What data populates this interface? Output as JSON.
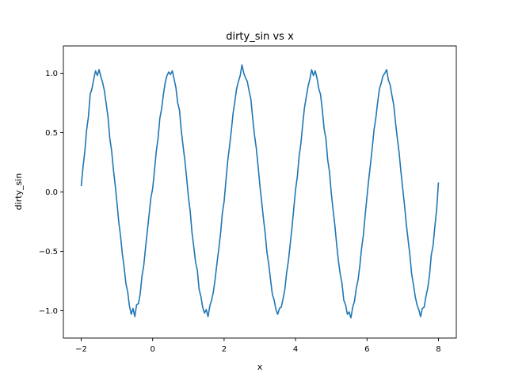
{
  "chart_data": {
    "type": "line",
    "title": "dirty_sin vs x",
    "xlabel": "x",
    "ylabel": "dirty_sin",
    "xlim": [
      -2.5,
      8.5
    ],
    "ylim": [
      -1.23,
      1.23
    ],
    "xticks": [
      -2,
      0,
      2,
      4,
      6,
      8
    ],
    "xtick_labels": [
      "−2",
      "0",
      "2",
      "4",
      "6",
      "8"
    ],
    "yticks": [
      -1.0,
      -0.5,
      0.0,
      0.5,
      1.0
    ],
    "ytick_labels": [
      "−1.0",
      "−0.5",
      "0.0",
      "0.5",
      "1.0"
    ],
    "grid": false,
    "series": [
      {
        "color": "#1f77b4",
        "x": [
          -2.0,
          -1.95,
          -1.9,
          -1.85,
          -1.8,
          -1.75,
          -1.7,
          -1.65,
          -1.6,
          -1.55,
          -1.5,
          -1.45,
          -1.4,
          -1.35,
          -1.3,
          -1.25,
          -1.2,
          -1.15,
          -1.1,
          -1.05,
          -1.0,
          -0.95,
          -0.9,
          -0.85,
          -0.8,
          -0.75,
          -0.7,
          -0.65,
          -0.6,
          -0.55,
          -0.5,
          -0.45,
          -0.4,
          -0.35,
          -0.3,
          -0.25,
          -0.2,
          -0.15,
          -0.1,
          -0.05,
          0.0,
          0.05,
          0.1,
          0.15,
          0.2,
          0.25,
          0.3,
          0.35,
          0.4,
          0.45,
          0.5,
          0.55,
          0.6,
          0.65,
          0.7,
          0.75,
          0.8,
          0.85,
          0.9,
          0.95,
          1.0,
          1.05,
          1.1,
          1.15,
          1.2,
          1.25,
          1.3,
          1.35,
          1.4,
          1.45,
          1.5,
          1.55,
          1.6,
          1.65,
          1.7,
          1.75,
          1.8,
          1.85,
          1.9,
          1.95,
          2.0,
          2.05,
          2.1,
          2.15,
          2.2,
          2.25,
          2.3,
          2.35,
          2.4,
          2.45,
          2.5,
          2.55,
          2.6,
          2.65,
          2.7,
          2.75,
          2.8,
          2.85,
          2.9,
          2.95,
          3.0,
          3.05,
          3.1,
          3.15,
          3.2,
          3.25,
          3.3,
          3.35,
          3.4,
          3.45,
          3.5,
          3.55,
          3.6,
          3.65,
          3.7,
          3.75,
          3.8,
          3.85,
          3.9,
          3.95,
          4.0,
          4.05,
          4.1,
          4.15,
          4.2,
          4.25,
          4.3,
          4.35,
          4.4,
          4.45,
          4.5,
          4.55,
          4.6,
          4.65,
          4.7,
          4.75,
          4.8,
          4.85,
          4.9,
          4.95,
          5.0,
          5.05,
          5.1,
          5.15,
          5.2,
          5.25,
          5.3,
          5.35,
          5.4,
          5.45,
          5.5,
          5.55,
          5.6,
          5.65,
          5.7,
          5.75,
          5.8,
          5.85,
          5.9,
          5.95,
          6.0,
          6.05,
          6.1,
          6.15,
          6.2,
          6.25,
          6.3,
          6.35,
          6.4,
          6.45,
          6.5,
          6.55,
          6.6,
          6.65,
          6.7,
          6.75,
          6.8,
          6.85,
          6.9,
          6.95,
          7.0,
          7.05,
          7.1,
          7.15,
          7.2,
          7.25,
          7.3,
          7.35,
          7.4,
          7.45,
          7.5,
          7.55,
          7.6,
          7.65,
          7.7,
          7.75,
          7.8,
          7.85,
          7.9,
          7.95,
          8.0
        ],
        "y": [
          0.05,
          0.21,
          0.34,
          0.52,
          0.63,
          0.82,
          0.87,
          0.95,
          1.02,
          0.98,
          1.03,
          0.97,
          0.92,
          0.85,
          0.74,
          0.63,
          0.45,
          0.35,
          0.19,
          0.06,
          -0.09,
          -0.25,
          -0.37,
          -0.52,
          -0.63,
          -0.77,
          -0.84,
          -0.96,
          -1.03,
          -0.98,
          -1.05,
          -0.95,
          -0.94,
          -0.86,
          -0.71,
          -0.62,
          -0.47,
          -0.33,
          -0.19,
          -0.05,
          0.03,
          0.18,
          0.34,
          0.45,
          0.62,
          0.7,
          0.82,
          0.92,
          0.98,
          1.01,
          0.99,
          1.02,
          0.95,
          0.88,
          0.75,
          0.69,
          0.52,
          0.39,
          0.27,
          0.12,
          -0.04,
          -0.16,
          -0.34,
          -0.46,
          -0.59,
          -0.66,
          -0.82,
          -0.88,
          -0.97,
          -1.02,
          -0.99,
          -1.05,
          -0.96,
          -0.91,
          -0.84,
          -0.73,
          -0.6,
          -0.48,
          -0.35,
          -0.18,
          -0.08,
          0.09,
          0.26,
          0.38,
          0.51,
          0.66,
          0.76,
          0.87,
          0.93,
          0.98,
          1.07,
          1.0,
          0.96,
          0.93,
          0.85,
          0.78,
          0.62,
          0.48,
          0.37,
          0.22,
          0.06,
          -0.08,
          -0.22,
          -0.35,
          -0.51,
          -0.61,
          -0.74,
          -0.86,
          -0.91,
          -0.99,
          -1.03,
          -0.98,
          -0.97,
          -0.9,
          -0.82,
          -0.68,
          -0.58,
          -0.44,
          -0.3,
          -0.14,
          0.02,
          0.13,
          0.3,
          0.41,
          0.57,
          0.71,
          0.8,
          0.89,
          0.95,
          1.03,
          0.98,
          1.02,
          0.96,
          0.87,
          0.82,
          0.69,
          0.53,
          0.45,
          0.27,
          0.17,
          -0.01,
          -0.15,
          -0.28,
          -0.44,
          -0.58,
          -0.69,
          -0.77,
          -0.91,
          -0.95,
          -1.03,
          -1.01,
          -1.06,
          -0.97,
          -0.92,
          -0.81,
          -0.74,
          -0.62,
          -0.47,
          -0.36,
          -0.19,
          -0.04,
          0.11,
          0.24,
          0.38,
          0.53,
          0.63,
          0.76,
          0.87,
          0.92,
          0.98,
          1.0,
          1.03,
          0.94,
          0.9,
          0.81,
          0.73,
          0.58,
          0.45,
          0.33,
          0.17,
          0.03,
          -0.11,
          -0.27,
          -0.4,
          -0.53,
          -0.69,
          -0.78,
          -0.88,
          -0.95,
          -0.99,
          -1.05,
          -0.98,
          -0.97,
          -0.88,
          -0.81,
          -0.7,
          -0.53,
          -0.45,
          -0.29,
          -0.15,
          0.08
        ]
      }
    ]
  }
}
